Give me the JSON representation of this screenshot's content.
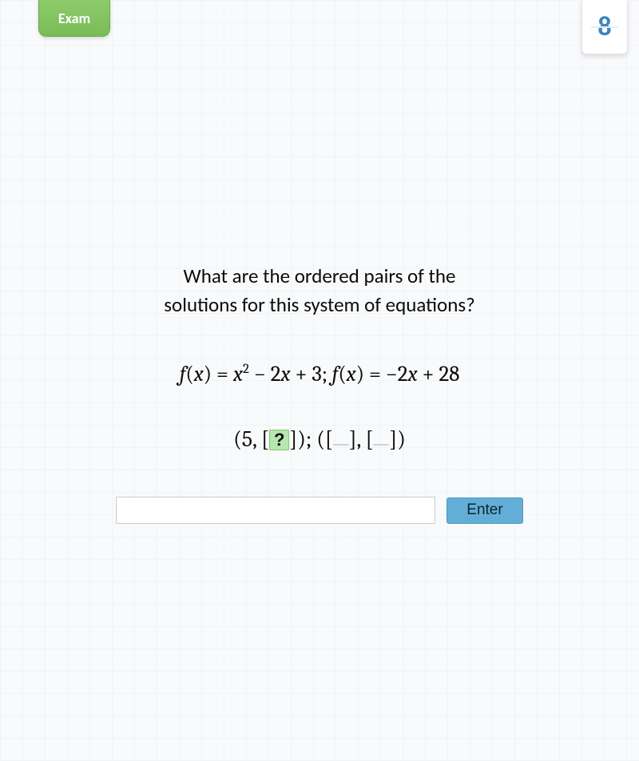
{
  "badge_label": "Exam",
  "counter_value": "8",
  "question": {
    "prompt_line1": "What are the ordered pairs of the",
    "prompt_line2": "solutions for this system of equations?",
    "equation_text": "f(x) = x² − 2x + 3; f(x) = −2x + 28",
    "eq": {
      "lhs1": "f",
      "arg1": "x",
      "rhs1_a": "x",
      "rhs1_exp": "2",
      "rhs1_b": " − 2",
      "rhs1_c": "x",
      "rhs1_d": " + 3",
      "sep": "; ",
      "lhs2": "f",
      "arg2": "x",
      "rhs2_a": " = −2",
      "rhs2_b": "x",
      "rhs2_c": " + 28"
    },
    "pairs": {
      "open1": "(",
      "first_x": "5",
      "comma": ", ",
      "bracket_open": "[",
      "unknown_marker": "?",
      "bracket_close": "]",
      "close1": ")",
      "sep": "; ",
      "open2": "(",
      "blank": " ",
      "close2": ")"
    }
  },
  "answer": {
    "value": "",
    "placeholder": ""
  },
  "enter_label": "Enter",
  "colors": {
    "badge_bg_top": "#8ecb6b",
    "badge_bg_bottom": "#79bc56",
    "counter_digit": "#3a86c0",
    "slot_active_bg": "#b7e6b0",
    "slot_bg": "#e9ebec",
    "enter_bg": "#63aed6",
    "page_bg": "#f9fafb",
    "grid_line": "#f1f3f5"
  }
}
